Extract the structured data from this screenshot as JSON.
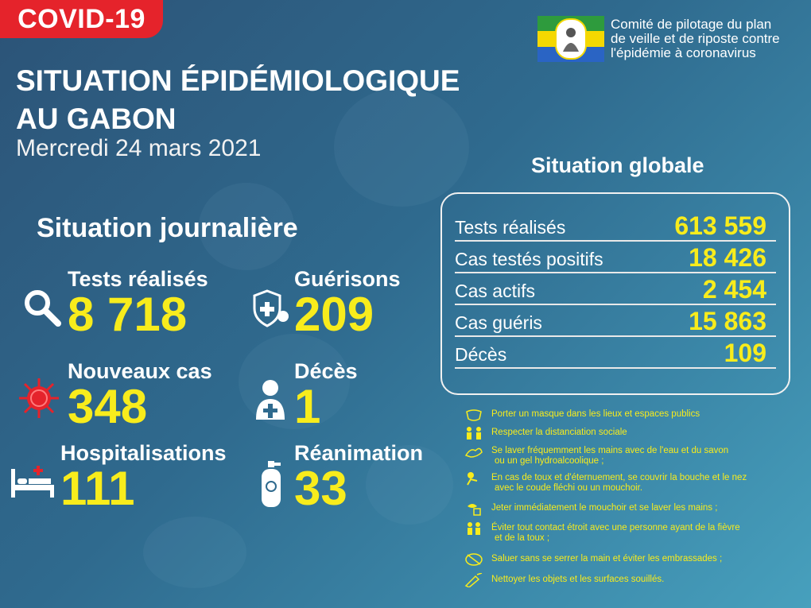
{
  "tag": "COVID-19",
  "title_line1": "SITUATION ÉPIDÉMIOLOGIQUE",
  "title_line2": "AU GABON",
  "date": "Mercredi 24 mars 2021",
  "committee": {
    "line1": "Comité de pilotage du plan",
    "line2": "de veille et de riposte contre",
    "line3": "l'épidémie à coronavirus",
    "seal_icon": "gabon-republic-seal-icon"
  },
  "colors": {
    "accent_yellow": "#f8ec1c",
    "tag_red": "#e5232b",
    "bg_dark": "#2c5377",
    "bg_light": "#47a0bd"
  },
  "daily": {
    "heading": "Situation journalière",
    "tests": {
      "label": "Tests réalisés",
      "value": "8 718",
      "icon": "magnifier-icon"
    },
    "recoveries": {
      "label": "Guérisons",
      "value": "209",
      "icon": "shield-virus-icon"
    },
    "new_cases": {
      "label": "Nouveaux cas",
      "value": "348",
      "icon": "virus-icon"
    },
    "deaths": {
      "label": "Décès",
      "value": "1",
      "icon": "person-cross-icon"
    },
    "hospitalisations": {
      "label": "Hospitalisations",
      "value": "111",
      "icon": "hospital-bed-icon"
    },
    "icu": {
      "label": "Réanimation",
      "value": "33",
      "icon": "oxygen-tank-icon"
    }
  },
  "global": {
    "heading": "Situation globale",
    "rows": [
      {
        "label": "Tests réalisés",
        "value": "613 559"
      },
      {
        "label": "Cas testés positifs",
        "value": "18 426"
      },
      {
        "label": "Cas actifs",
        "value": "2 454"
      },
      {
        "label": "Cas guéris",
        "value": "15 863"
      },
      {
        "label": "Décès",
        "value": "109"
      }
    ]
  },
  "tips": [
    {
      "line1": "Porter un masque dans les lieux et espaces publics",
      "line2": "",
      "icon": "mask-icon"
    },
    {
      "line1": "Respecter la distanciation sociale",
      "line2": "",
      "icon": "distancing-icon"
    },
    {
      "line1": "Se laver fréquemment les mains avec de l'eau et du savon",
      "line2": "ou un gel hydroalcoolique ;",
      "icon": "hand-wash-icon"
    },
    {
      "line1": "En cas de toux et d'éternuement, se couvrir la bouche et le nez",
      "line2": "avec le coude fléchi ou un mouchoir.",
      "icon": "cough-icon"
    },
    {
      "line1": "Jeter immédiatement le mouchoir et se laver les mains ;",
      "line2": "",
      "icon": "tissue-bin-icon"
    },
    {
      "line1": "Éviter tout contact étroit avec une personne ayant de la fièvre",
      "line2": "et de la toux ;",
      "icon": "avoid-contact-icon"
    },
    {
      "line1": "Saluer sans se serrer la main et éviter les embrassades ;",
      "line2": "",
      "icon": "no-handshake-icon"
    },
    {
      "line1": "Nettoyer les objets et les surfaces souillés.",
      "line2": "",
      "icon": "cleaning-icon"
    }
  ]
}
